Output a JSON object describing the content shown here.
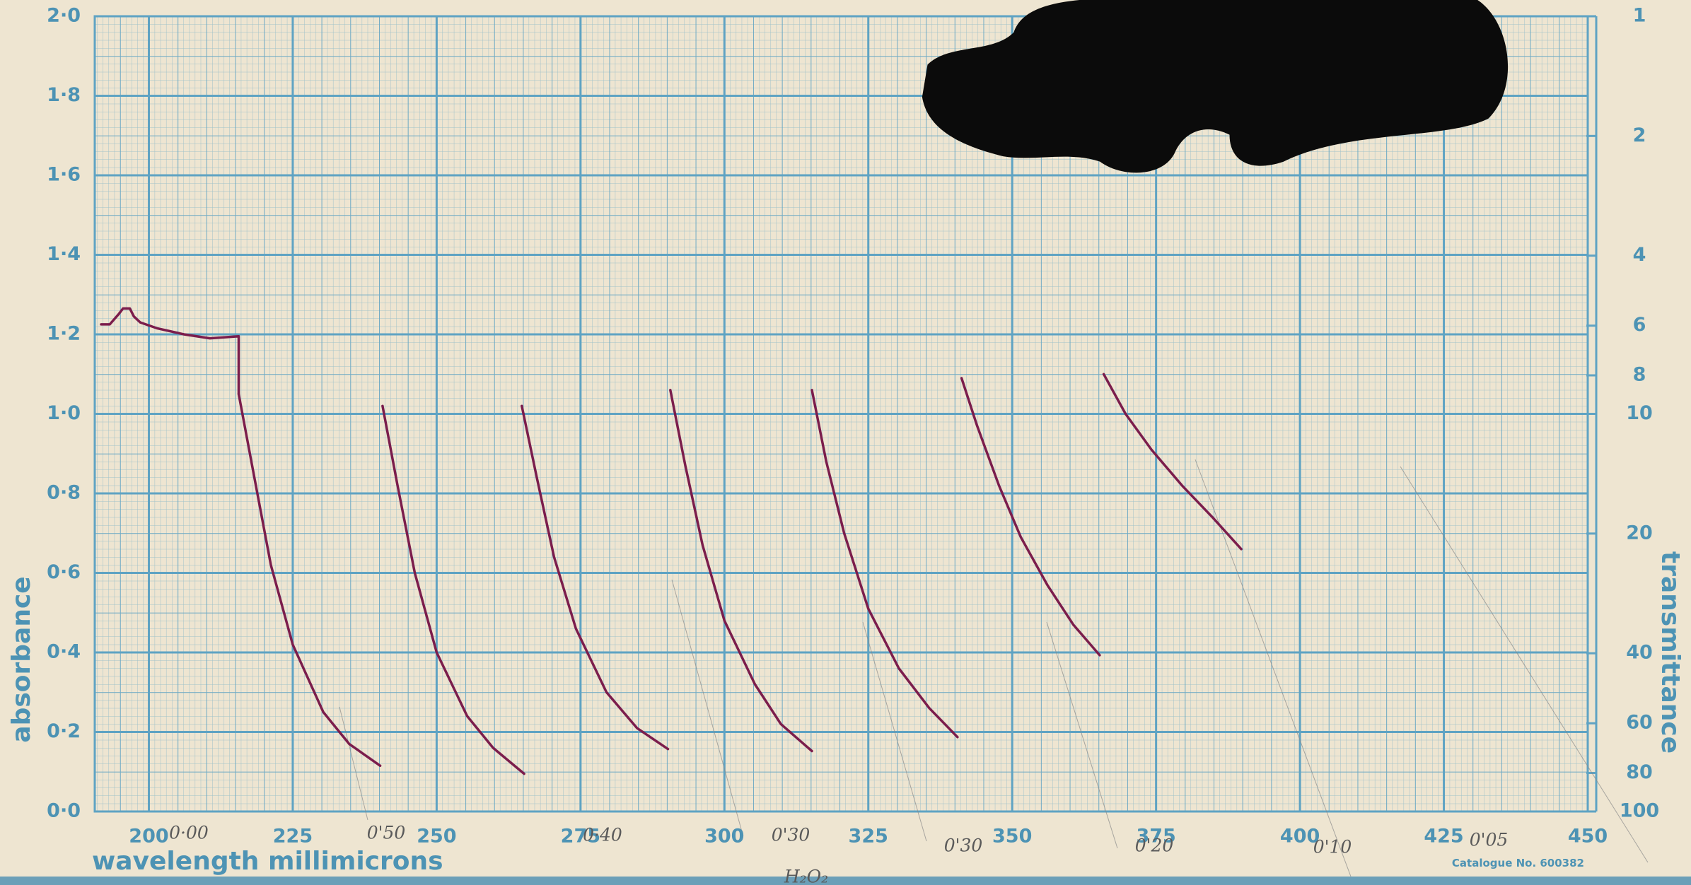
{
  "chart_data": {
    "type": "line",
    "xlabel": "wavelength  millimicrons",
    "ylabel": "absorbance",
    "y2label": "transmittance",
    "footnote": "Catalogue No. 600382",
    "annotations": [
      "0·00",
      "0'50",
      "0·40",
      "0'30",
      "0'30",
      "0'20",
      "0'10",
      "0'05",
      "H₂O₂"
    ],
    "xlim": [
      190.6,
      450
    ],
    "xticks": [
      200,
      225,
      250,
      275,
      300,
      325,
      350,
      375,
      400,
      425,
      450
    ],
    "ylim": [
      0,
      2
    ],
    "yticks": [
      {
        "value": 0,
        "label": "0·0"
      },
      {
        "value": 0.2,
        "label": "0·2"
      },
      {
        "value": 0.4,
        "label": "0·4"
      },
      {
        "value": 0.6,
        "label": "0·6"
      },
      {
        "value": 0.8,
        "label": "0·8"
      },
      {
        "value": 1.0,
        "label": "1·0"
      },
      {
        "value": 1.2,
        "label": "1·2"
      },
      {
        "value": 1.4,
        "label": "1·4"
      },
      {
        "value": 1.6,
        "label": "1·6"
      },
      {
        "value": 1.8,
        "label": "1·8"
      },
      {
        "value": 2.0,
        "label": "2·0"
      }
    ],
    "y2lim": [
      100,
      1
    ],
    "y2log": true,
    "y2ticks": [
      1,
      2,
      4,
      6,
      8,
      10,
      20,
      40,
      60,
      80,
      100
    ],
    "grid": true,
    "series": [
      {
        "color": "#7b1d4c",
        "x": [
          191.7,
          193.2,
          194.7,
          195.5,
          196.7,
          197.4,
          198.5,
          201.5,
          206.1,
          210.6,
          215.6,
          215.6
        ],
        "values": [
          1.225,
          1.225,
          1.25,
          1.265,
          1.265,
          1.245,
          1.23,
          1.215,
          1.2,
          1.19,
          1.195,
          1.05
        ]
      },
      {
        "color": "#7b1d4c",
        "x": [
          215.6,
          218.2,
          221.2,
          225.0,
          230.3,
          234.8,
          240.2
        ],
        "values": [
          1.05,
          0.85,
          0.62,
          0.42,
          0.25,
          0.17,
          0.115
        ]
      },
      {
        "color": "#7b1d4c",
        "x": [
          240.6,
          243.2,
          246.2,
          250.0,
          255.3,
          259.8,
          265.2
        ],
        "values": [
          1.02,
          0.82,
          0.6,
          0.4,
          0.24,
          0.16,
          0.095
        ]
      },
      {
        "color": "#7b1d4c",
        "x": [
          264.8,
          267.4,
          270.4,
          274.2,
          279.5,
          284.8,
          290.2
        ],
        "values": [
          1.02,
          0.84,
          0.64,
          0.46,
          0.3,
          0.21,
          0.157
        ]
      },
      {
        "color": "#7b1d4c",
        "x": [
          290.6,
          293.2,
          296.2,
          300.0,
          305.3,
          309.8,
          315.2
        ],
        "values": [
          1.06,
          0.87,
          0.67,
          0.48,
          0.32,
          0.22,
          0.152
        ]
      },
      {
        "color": "#7b1d4c",
        "x": [
          315.2,
          317.7,
          320.8,
          325.0,
          330.3,
          335.6,
          340.5
        ],
        "values": [
          1.06,
          0.88,
          0.7,
          0.51,
          0.36,
          0.26,
          0.187
        ]
      },
      {
        "color": "#7b1d4c",
        "x": [
          341.2,
          343.9,
          347.7,
          351.5,
          356.1,
          360.6,
          365.2
        ],
        "values": [
          1.09,
          0.97,
          0.82,
          0.69,
          0.57,
          0.47,
          0.393
        ]
      },
      {
        "color": "#7b1d4c",
        "x": [
          365.9,
          369.7,
          374.2,
          379.5,
          384.8,
          389.8
        ],
        "values": [
          1.1,
          1.0,
          0.91,
          0.82,
          0.74,
          0.66
        ]
      }
    ]
  }
}
